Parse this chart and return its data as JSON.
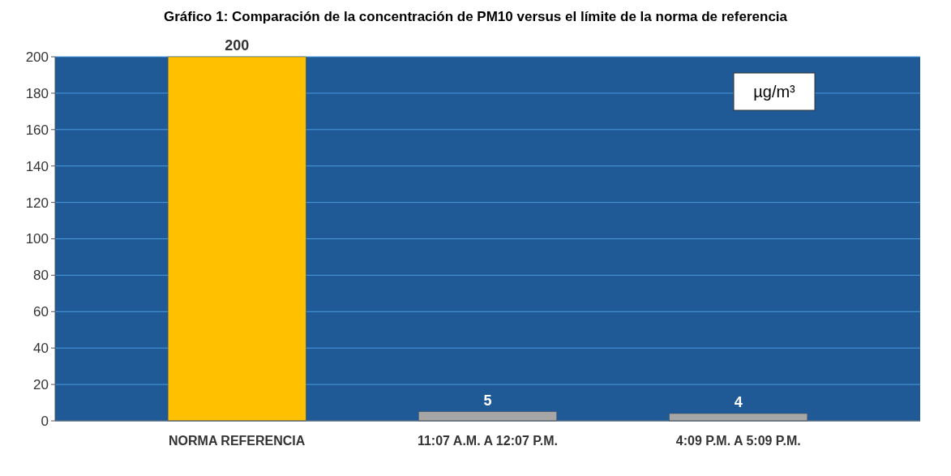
{
  "chart_data": {
    "type": "bar",
    "title": "Gráfico 1: Comparación de la concentración de PM10 versus el límite de la norma de referencia",
    "categories": [
      "NORMA REFERENCIA",
      "11:07 A.M. A 12:07 P.M.",
      "4:09 P.M. A 5:09 P.M."
    ],
    "values": [
      200,
      5,
      4
    ],
    "colors": [
      "#ffc000",
      "#a6a6a6",
      "#a6a6a6"
    ],
    "ylim": [
      0,
      200
    ],
    "yticks": [
      0,
      20,
      40,
      60,
      80,
      100,
      120,
      140,
      160,
      180,
      200
    ],
    "grid": "y",
    "data_labels": true,
    "annotations": [
      "µg/m³"
    ]
  }
}
